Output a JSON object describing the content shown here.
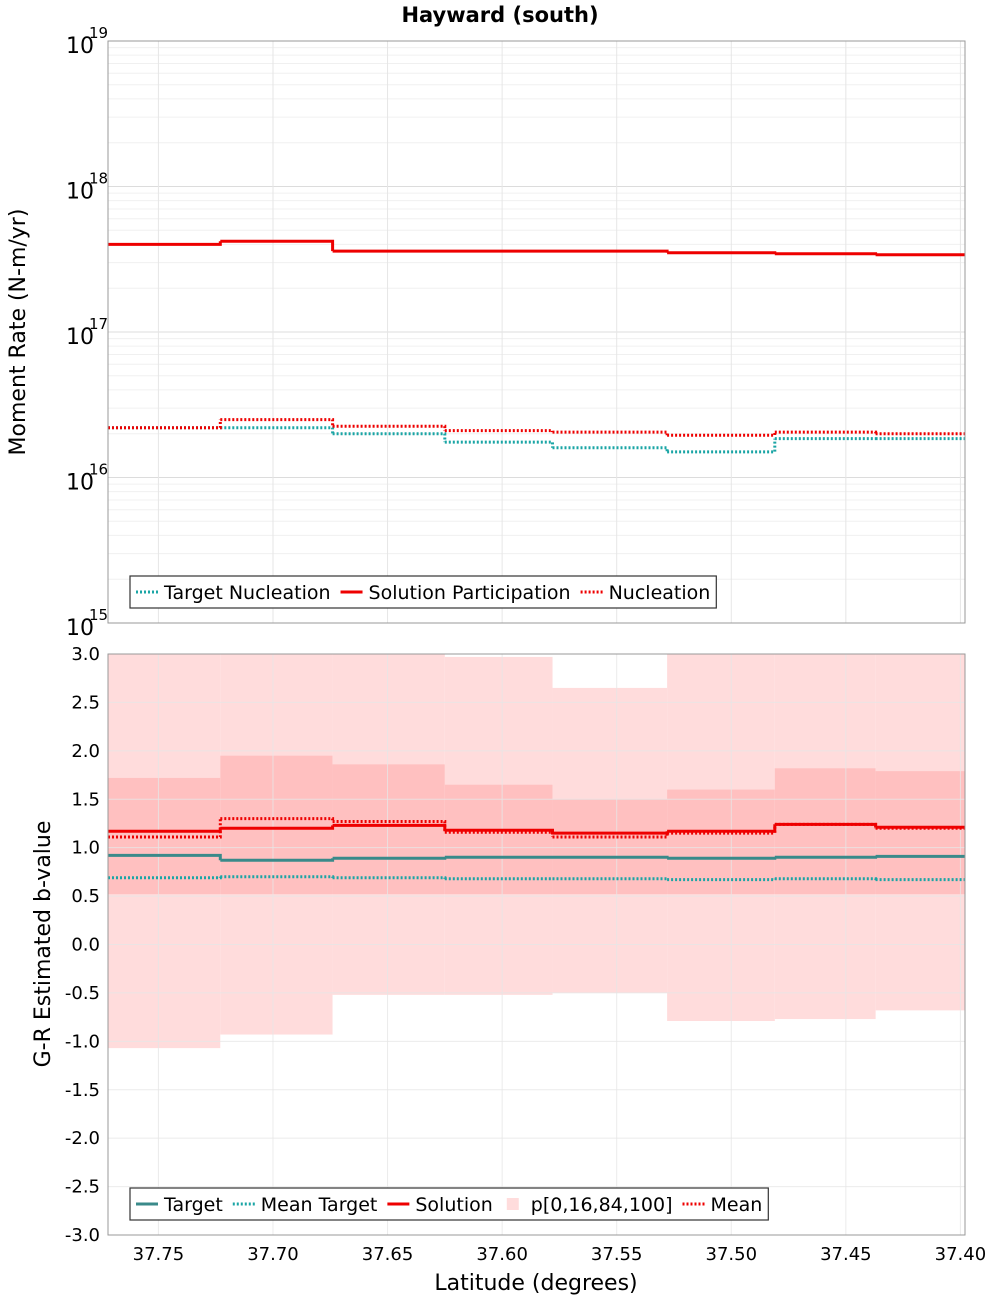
{
  "figure_title": "Hayward (south)",
  "colors": {
    "target": "#1aa5a5",
    "target_dark": "#3a8a8a",
    "solution": "#ee0000",
    "band_outer": "#ffdcdc",
    "band_inner": "#ffc0c0",
    "grid": "#e6e6e6"
  },
  "chart_data": [
    {
      "type": "line",
      "title": "",
      "xlabel": "",
      "ylabel": "Moment Rate (N-m/yr)",
      "yscale": "log",
      "ylim": [
        1000000000000000.0,
        1e+19
      ],
      "xlim": [
        37.772,
        37.398
      ],
      "x_reversed": true,
      "grid": true,
      "legend_placement": "bottom-left",
      "y_tick_labels": [
        {
          "base": "10",
          "exp": "15"
        },
        {
          "base": "10",
          "exp": "16"
        },
        {
          "base": "10",
          "exp": "17"
        },
        {
          "base": "10",
          "exp": "18"
        },
        {
          "base": "10",
          "exp": "19"
        }
      ],
      "bin_edges": [
        37.772,
        37.723,
        37.674,
        37.625,
        37.578,
        37.528,
        37.481,
        37.437,
        37.398
      ],
      "series": [
        {
          "name": "Target Nucleation",
          "style": "dotted",
          "color": "#1aa5a5",
          "values": [
            2.2e+16,
            2.2e+16,
            2e+16,
            1.75e+16,
            1.6e+16,
            1.5e+16,
            1.85e+16,
            1.85e+16
          ]
        },
        {
          "name": "Solution Participation",
          "style": "solid",
          "color": "#ee0000",
          "values": [
            4e+17,
            4.2e+17,
            3.6e+17,
            3.6e+17,
            3.6e+17,
            3.5e+17,
            3.45e+17,
            3.4e+17
          ]
        },
        {
          "name": "Nucleation",
          "style": "dotted",
          "color": "#ee0000",
          "values": [
            2.2e+16,
            2.5e+16,
            2.25e+16,
            2.1e+16,
            2.05e+16,
            1.95e+16,
            2.05e+16,
            2e+16
          ]
        }
      ]
    },
    {
      "type": "line",
      "title": "",
      "xlabel": "Latitude (degrees)",
      "ylabel": "G-R Estimated b-value",
      "yscale": "linear",
      "ylim": [
        -3.0,
        3.0
      ],
      "xlim": [
        37.772,
        37.398
      ],
      "x_reversed": true,
      "grid": true,
      "legend_placement": "bottom-left",
      "x_ticks": [
        37.75,
        37.7,
        37.65,
        37.6,
        37.55,
        37.5,
        37.45,
        37.4
      ],
      "x_tick_labels": [
        "37.75",
        "37.70",
        "37.65",
        "37.60",
        "37.55",
        "37.50",
        "37.45",
        "37.40"
      ],
      "y_ticks": [
        3.0,
        2.5,
        2.0,
        1.5,
        1.0,
        0.5,
        0.0,
        -0.5,
        -1.0,
        -1.5,
        -2.0,
        -2.5,
        -3.0
      ],
      "y_tick_labels": [
        "3.0",
        "2.5",
        "2.0",
        "1.5",
        "1.0",
        "0.5",
        "0.0",
        "-0.5",
        "-1.0",
        "-1.5",
        "-2.0",
        "-2.5",
        "-3.0"
      ],
      "bin_edges": [
        37.772,
        37.723,
        37.674,
        37.625,
        37.578,
        37.528,
        37.481,
        37.437,
        37.398
      ],
      "band": {
        "name": "p[0,16,84,100]",
        "p0": [
          -1.07,
          -0.93,
          -0.52,
          -0.52,
          -0.5,
          -0.79,
          -0.77,
          -0.68
        ],
        "p16": [
          0.52,
          0.52,
          0.52,
          0.52,
          0.52,
          0.52,
          0.52,
          0.52
        ],
        "p84": [
          1.72,
          1.95,
          1.86,
          1.65,
          1.5,
          1.6,
          1.82,
          1.79
        ],
        "p100": [
          3.0,
          3.0,
          3.0,
          2.97,
          2.65,
          3.0,
          3.0,
          3.0
        ]
      },
      "series": [
        {
          "name": "Target",
          "style": "solid",
          "color": "#3a8a8a",
          "values": [
            0.92,
            0.87,
            0.89,
            0.9,
            0.9,
            0.89,
            0.9,
            0.91
          ]
        },
        {
          "name": "Mean Target",
          "style": "dotted",
          "color": "#1aa5a5",
          "values": [
            0.69,
            0.7,
            0.69,
            0.68,
            0.68,
            0.67,
            0.68,
            0.67
          ]
        },
        {
          "name": "Solution",
          "style": "solid",
          "color": "#ee0000",
          "values": [
            1.17,
            1.2,
            1.23,
            1.18,
            1.15,
            1.17,
            1.24,
            1.21
          ]
        },
        {
          "name": "Mean",
          "style": "dotted",
          "color": "#ee0000",
          "values": [
            1.11,
            1.3,
            1.27,
            1.16,
            1.11,
            1.15,
            1.24,
            1.2
          ]
        }
      ]
    }
  ]
}
